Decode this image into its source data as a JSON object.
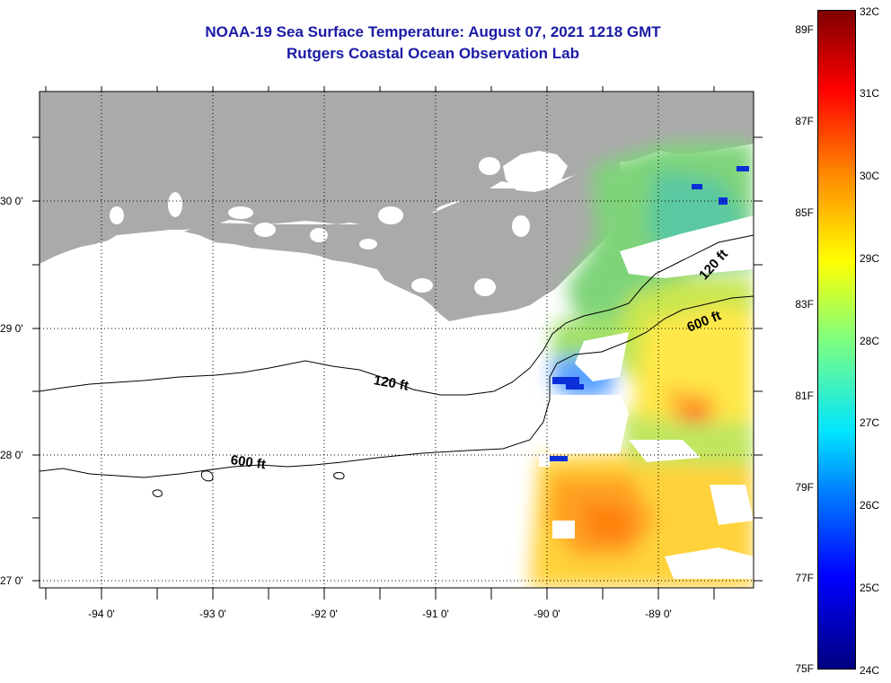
{
  "title": "NOAA-19 Sea Surface Temperature:  August 07, 2021 1218 GMT",
  "subtitle": "Rutgers Coastal Ocean Observation Lab",
  "latitude_labels": [
    "30 0'",
    "29 0'",
    "28 0'",
    "27 0'"
  ],
  "longitude_labels": [
    "-94 0'",
    "-93 0'",
    "-92 0'",
    "-91 0'",
    "-90 0'",
    "-89 0'"
  ],
  "contour_labels": {
    "shelf_120_east": "120 ft",
    "shelf_600_east": "600 ft",
    "shelf_120_west": "120 ft",
    "shelf_600_west": "600 ft"
  },
  "colorbar": {
    "fahrenheit": [
      "89F",
      "87F",
      "85F",
      "83F",
      "81F",
      "79F",
      "77F",
      "75F"
    ],
    "celsius": [
      "32C",
      "31C",
      "30C",
      "29C",
      "28C",
      "27C",
      "26C",
      "25C",
      "24C"
    ]
  },
  "colors": {
    "land": "#aaaaaa",
    "title": "#1a1aa6",
    "water_missing": "#ffffff"
  }
}
